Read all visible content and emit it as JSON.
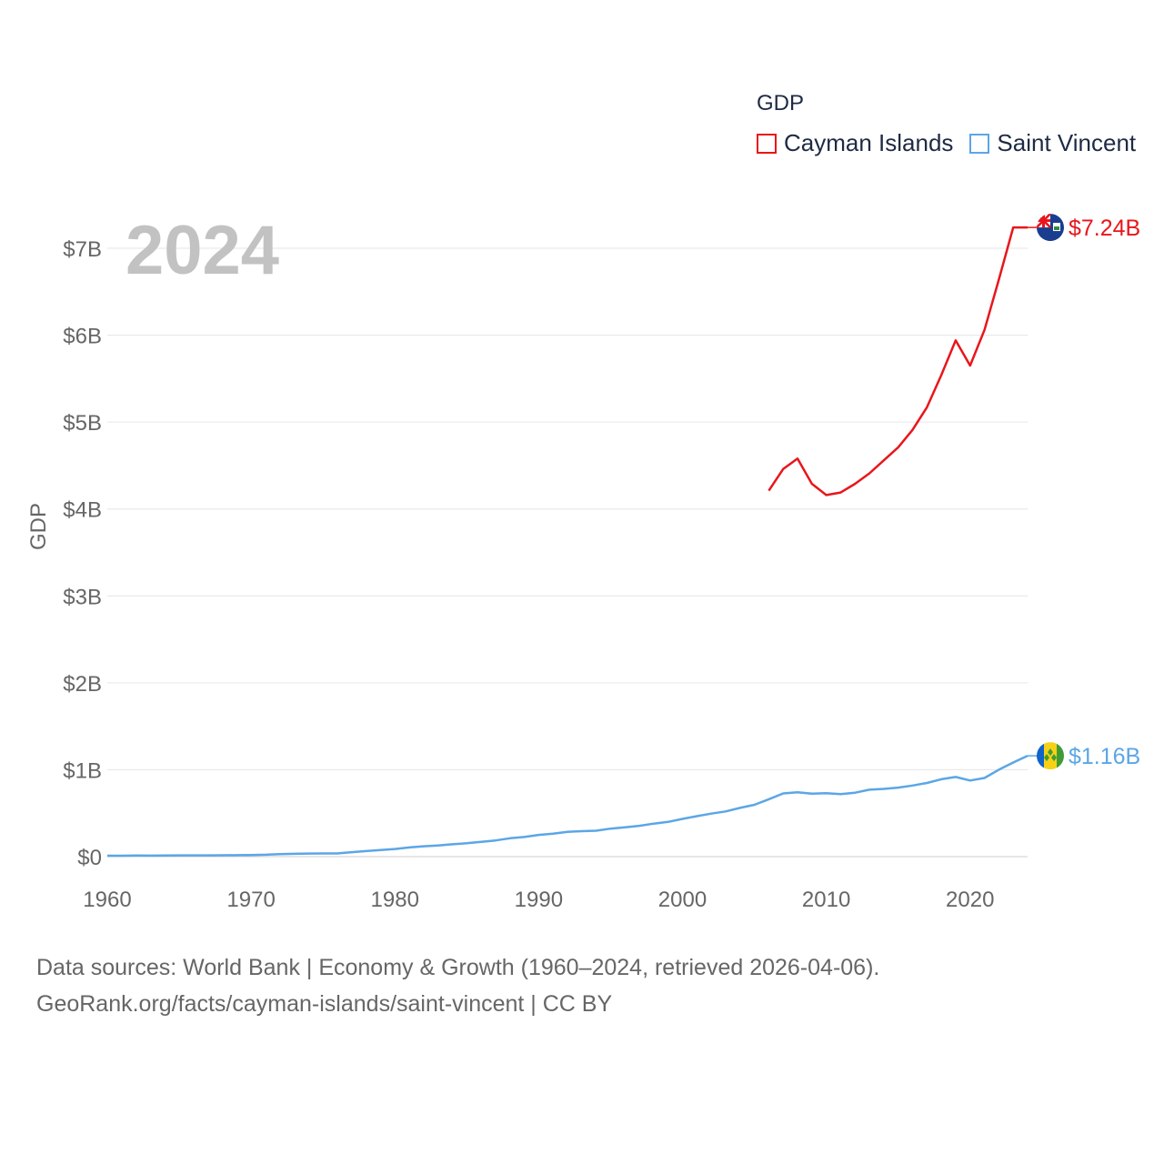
{
  "legend": {
    "title": "GDP",
    "items": [
      {
        "label": "Cayman Islands",
        "color": "#e8161b"
      },
      {
        "label": "Saint Vincent",
        "color": "#5ba6e6"
      }
    ]
  },
  "footer": {
    "line1": "Data sources: World Bank | Economy & Growth (1960–2024, retrieved 2026-04-06).",
    "line2": "GeoRank.org/facts/cayman-islands/saint-vincent | CC BY"
  },
  "chart_data": {
    "type": "line",
    "title": "GDP",
    "year_label": "2024",
    "xlabel": "",
    "ylabel": "GDP",
    "xlim": [
      1960,
      2024
    ],
    "ylim": [
      0,
      7.5
    ],
    "x_ticks": [
      1960,
      1970,
      1980,
      1990,
      2000,
      2010,
      2020
    ],
    "y_ticks": [
      {
        "value": 0,
        "label": "$0"
      },
      {
        "value": 1,
        "label": "$1B"
      },
      {
        "value": 2,
        "label": "$2B"
      },
      {
        "value": 3,
        "label": "$3B"
      },
      {
        "value": 4,
        "label": "$4B"
      },
      {
        "value": 5,
        "label": "$5B"
      },
      {
        "value": 6,
        "label": "$6B"
      },
      {
        "value": 7,
        "label": "$7B"
      }
    ],
    "units": "billion USD",
    "series": [
      {
        "name": "Cayman Islands",
        "color": "#e8161b",
        "end_label": "$7.24B",
        "flag": "cayman-islands-flag",
        "points": [
          [
            2006,
            4.21
          ],
          [
            2007,
            4.46
          ],
          [
            2008,
            4.58
          ],
          [
            2009,
            4.29
          ],
          [
            2010,
            4.16
          ],
          [
            2011,
            4.19
          ],
          [
            2012,
            4.29
          ],
          [
            2013,
            4.41
          ],
          [
            2014,
            4.56
          ],
          [
            2015,
            4.71
          ],
          [
            2016,
            4.91
          ],
          [
            2017,
            5.17
          ],
          [
            2018,
            5.54
          ],
          [
            2019,
            5.94
          ],
          [
            2020,
            5.65
          ],
          [
            2021,
            6.06
          ],
          [
            2022,
            6.64
          ],
          [
            2023,
            7.24
          ],
          [
            2024,
            7.24
          ]
        ]
      },
      {
        "name": "Saint Vincent",
        "color": "#5ba6e6",
        "end_label": "$1.16B",
        "flag": "saint-vincent-flag",
        "points": [
          [
            1960,
            0.01
          ],
          [
            1961,
            0.01
          ],
          [
            1962,
            0.013
          ],
          [
            1963,
            0.012
          ],
          [
            1964,
            0.014
          ],
          [
            1965,
            0.015
          ],
          [
            1966,
            0.015
          ],
          [
            1967,
            0.015
          ],
          [
            1968,
            0.016
          ],
          [
            1969,
            0.017
          ],
          [
            1970,
            0.019
          ],
          [
            1971,
            0.022
          ],
          [
            1972,
            0.029
          ],
          [
            1973,
            0.032
          ],
          [
            1974,
            0.036
          ],
          [
            1975,
            0.037
          ],
          [
            1976,
            0.037
          ],
          [
            1977,
            0.051
          ],
          [
            1978,
            0.064
          ],
          [
            1979,
            0.075
          ],
          [
            1980,
            0.088
          ],
          [
            1981,
            0.106
          ],
          [
            1982,
            0.119
          ],
          [
            1983,
            0.129
          ],
          [
            1984,
            0.142
          ],
          [
            1985,
            0.154
          ],
          [
            1986,
            0.17
          ],
          [
            1987,
            0.186
          ],
          [
            1988,
            0.211
          ],
          [
            1989,
            0.226
          ],
          [
            1990,
            0.25
          ],
          [
            1991,
            0.264
          ],
          [
            1992,
            0.286
          ],
          [
            1993,
            0.293
          ],
          [
            1994,
            0.298
          ],
          [
            1995,
            0.322
          ],
          [
            1996,
            0.338
          ],
          [
            1997,
            0.355
          ],
          [
            1998,
            0.38
          ],
          [
            1999,
            0.4
          ],
          [
            2000,
            0.434
          ],
          [
            2001,
            0.466
          ],
          [
            2002,
            0.495
          ],
          [
            2003,
            0.52
          ],
          [
            2004,
            0.561
          ],
          [
            2005,
            0.596
          ],
          [
            2006,
            0.66
          ],
          [
            2007,
            0.727
          ],
          [
            2008,
            0.74
          ],
          [
            2009,
            0.724
          ],
          [
            2010,
            0.73
          ],
          [
            2011,
            0.72
          ],
          [
            2012,
            0.736
          ],
          [
            2013,
            0.77
          ],
          [
            2014,
            0.78
          ],
          [
            2015,
            0.794
          ],
          [
            2016,
            0.818
          ],
          [
            2017,
            0.848
          ],
          [
            2018,
            0.89
          ],
          [
            2019,
            0.917
          ],
          [
            2020,
            0.876
          ],
          [
            2021,
            0.905
          ],
          [
            2022,
            1.0
          ],
          [
            2023,
            1.083
          ],
          [
            2024,
            1.16
          ]
        ]
      }
    ]
  }
}
